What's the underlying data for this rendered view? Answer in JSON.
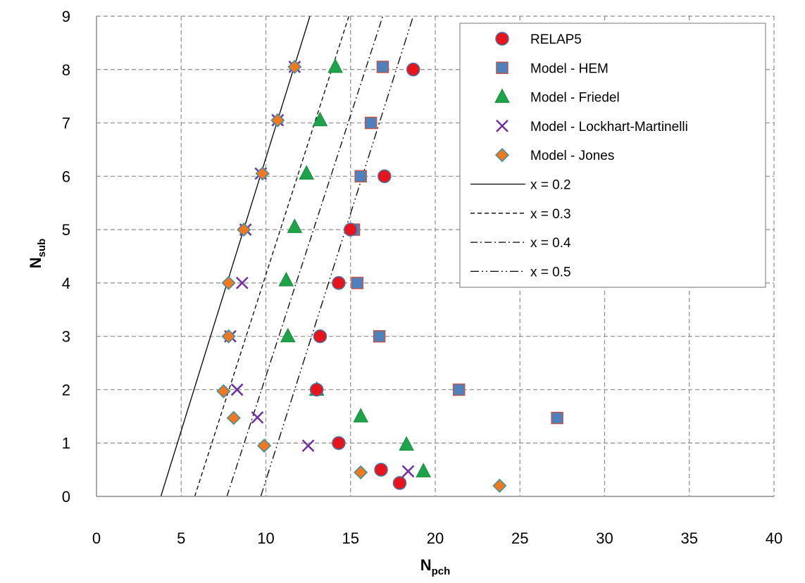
{
  "chart_data": {
    "type": "scatter",
    "xlabel": {
      "main": "N",
      "sub": "pch"
    },
    "ylabel": {
      "main": "N",
      "sub": "sub"
    },
    "xlim": [
      0,
      40
    ],
    "ylim": [
      0,
      9
    ],
    "xticks": [
      "0",
      "5",
      "10",
      "15",
      "20",
      "25",
      "30",
      "35",
      "40"
    ],
    "yticks": [
      "0",
      "1",
      "2",
      "3",
      "4",
      "5",
      "6",
      "7",
      "8",
      "9"
    ],
    "grid": true,
    "legend_position": "top-right",
    "series": [
      {
        "name": "RELAP5",
        "marker": "circle",
        "color": "#e8141b",
        "points": [
          [
            18.7,
            8.0
          ],
          [
            17.0,
            6.0
          ],
          [
            15.0,
            5.0
          ],
          [
            14.3,
            4.0
          ],
          [
            13.2,
            3.0
          ],
          [
            13.0,
            2.0
          ],
          [
            14.3,
            1.0
          ],
          [
            16.8,
            0.5
          ],
          [
            17.9,
            0.25
          ]
        ]
      },
      {
        "name": "Model - HEM",
        "marker": "square",
        "color": "#4f81bd",
        "points": [
          [
            16.9,
            8.05
          ],
          [
            16.2,
            7.0
          ],
          [
            15.6,
            6.0
          ],
          [
            15.2,
            5.0
          ],
          [
            15.4,
            4.0
          ],
          [
            16.7,
            3.0
          ],
          [
            21.4,
            2.0
          ],
          [
            27.2,
            1.47
          ]
        ]
      },
      {
        "name": "Model - Friedel",
        "marker": "triangle",
        "color": "#1da34a",
        "points": [
          [
            14.1,
            8.05
          ],
          [
            13.2,
            7.05
          ],
          [
            12.4,
            6.05
          ],
          [
            11.7,
            5.05
          ],
          [
            11.2,
            4.05
          ],
          [
            11.3,
            3.0
          ],
          [
            13.0,
            2.0
          ],
          [
            15.6,
            1.5
          ],
          [
            18.3,
            0.97
          ],
          [
            19.3,
            0.47
          ]
        ]
      },
      {
        "name": "Model - Lockhart-Martinelli",
        "marker": "x",
        "color": "#7030a0",
        "points": [
          [
            11.7,
            8.05
          ],
          [
            10.7,
            7.05
          ],
          [
            9.7,
            6.05
          ],
          [
            8.8,
            5.0
          ],
          [
            8.6,
            4.0
          ],
          [
            7.9,
            3.0
          ],
          [
            8.3,
            2.0
          ],
          [
            9.5,
            1.48
          ],
          [
            12.5,
            0.95
          ],
          [
            18.4,
            0.47
          ]
        ]
      },
      {
        "name": "Model - Jones",
        "marker": "diamond",
        "color": "#f07920",
        "points": [
          [
            11.7,
            8.05
          ],
          [
            10.7,
            7.05
          ],
          [
            9.8,
            6.05
          ],
          [
            8.7,
            5.0
          ],
          [
            7.8,
            4.0
          ],
          [
            7.8,
            3.0
          ],
          [
            7.5,
            1.97
          ],
          [
            8.1,
            1.47
          ],
          [
            9.9,
            0.95
          ],
          [
            15.6,
            0.45
          ],
          [
            23.8,
            0.2
          ]
        ]
      }
    ],
    "lines": [
      {
        "name": "x = 0.2",
        "dash": "none",
        "points": [
          [
            3.8,
            0
          ],
          [
            12.6,
            9
          ]
        ]
      },
      {
        "name": "x = 0.3",
        "dash": "6,4",
        "points": [
          [
            5.8,
            0
          ],
          [
            14.9,
            9
          ]
        ]
      },
      {
        "name": "x = 0.4",
        "dash": "10,4,2,4",
        "points": [
          [
            7.7,
            0
          ],
          [
            16.9,
            9
          ]
        ]
      },
      {
        "name": "x = 0.5",
        "dash": "12,4,2,4,2,4",
        "points": [
          [
            9.7,
            0
          ],
          [
            18.7,
            9
          ]
        ]
      }
    ]
  }
}
